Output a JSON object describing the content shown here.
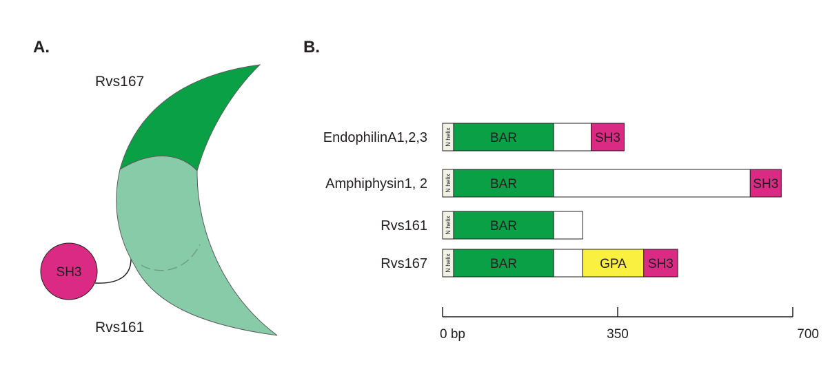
{
  "panel_a": {
    "label": "A.",
    "top_protein": "Rvs167",
    "bottom_protein": "Rvs161",
    "sh3_label": "SH3"
  },
  "panel_b": {
    "label": "B.",
    "n_helix_label": "N helix",
    "proteins": [
      {
        "name": "EndophilinA1,2,3",
        "length": 370,
        "domains": [
          {
            "label": "N helix",
            "start": 0,
            "end": 22,
            "color": "#f2f2e6"
          },
          {
            "label": "BAR",
            "start": 22,
            "end": 222,
            "color": "#0aa046"
          },
          {
            "label": "",
            "start": 222,
            "end": 297,
            "color": "#ffffff"
          },
          {
            "label": "SH3",
            "start": 297,
            "end": 363,
            "color": "#db2a84"
          }
        ]
      },
      {
        "name": "Amphiphysin1, 2",
        "length": 680,
        "domains": [
          {
            "label": "N helix",
            "start": 0,
            "end": 22,
            "color": "#f2f2e6"
          },
          {
            "label": "BAR",
            "start": 22,
            "end": 222,
            "color": "#0aa046"
          },
          {
            "label": "",
            "start": 222,
            "end": 615,
            "color": "#ffffff"
          },
          {
            "label": "SH3",
            "start": 615,
            "end": 677,
            "color": "#db2a84"
          }
        ]
      },
      {
        "name": "Rvs161",
        "length": 280,
        "domains": [
          {
            "label": "N helix",
            "start": 0,
            "end": 22,
            "color": "#f2f2e6"
          },
          {
            "label": "BAR",
            "start": 22,
            "end": 222,
            "color": "#0aa046"
          },
          {
            "label": "",
            "start": 222,
            "end": 280,
            "color": "#ffffff"
          }
        ]
      },
      {
        "name": "Rvs167",
        "length": 470,
        "domains": [
          {
            "label": "N helix",
            "start": 0,
            "end": 22,
            "color": "#f2f2e6"
          },
          {
            "label": "BAR",
            "start": 22,
            "end": 222,
            "color": "#0aa046"
          },
          {
            "label": "",
            "start": 222,
            "end": 280,
            "color": "#ffffff"
          },
          {
            "label": "GPA",
            "start": 280,
            "end": 402,
            "color": "#faf040"
          },
          {
            "label": "SH3",
            "start": 402,
            "end": 470,
            "color": "#db2a84"
          }
        ]
      }
    ],
    "scale": {
      "min": 0,
      "max": 700,
      "ticks": [
        {
          "value": 0,
          "label": "0 bp"
        },
        {
          "value": 350,
          "label": "350"
        },
        {
          "value": 700,
          "label": "700"
        }
      ]
    }
  },
  "colors": {
    "bar_dark": "#0aa046",
    "bar_light": "#88cba8",
    "sh3": "#db2a84",
    "gpa": "#faf040"
  }
}
